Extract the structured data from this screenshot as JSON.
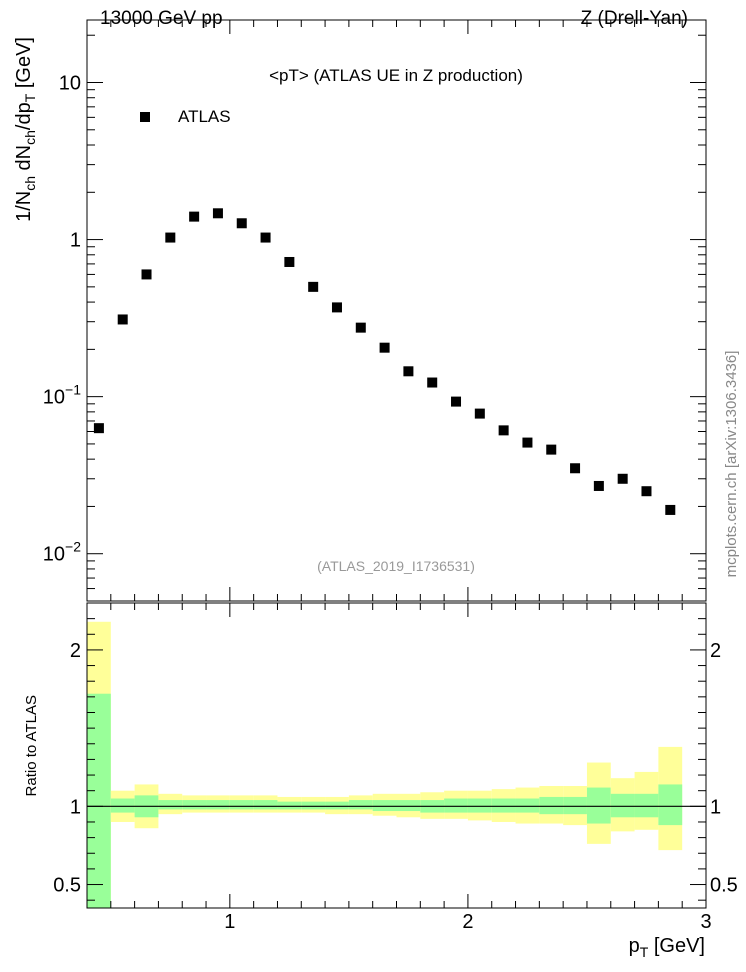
{
  "header": {
    "left": "13000 GeV pp",
    "right": "Z (Drell-Yan)"
  },
  "side_label": "mcplots.cern.ch [arXiv:1306.3436]",
  "chart_data": [
    {
      "type": "scatter",
      "title": "<pT> (ATLAS UE in Z production)",
      "subtitle": "(ATLAS_2019_I1736531)",
      "ylabel": "1/N_ch dN_ch/dp_T [GeV]",
      "yscale": "log",
      "xlim": [
        0.4,
        3.0
      ],
      "ylim": [
        0.005,
        25
      ],
      "legend": {
        "position": "top-left",
        "entries": [
          "ATLAS"
        ]
      },
      "series": [
        {
          "name": "ATLAS",
          "marker": "square",
          "color": "#000000",
          "x": [
            0.45,
            0.55,
            0.65,
            0.75,
            0.85,
            0.95,
            1.05,
            1.15,
            1.25,
            1.35,
            1.45,
            1.55,
            1.65,
            1.75,
            1.85,
            1.95,
            2.05,
            2.15,
            2.25,
            2.35,
            2.45,
            2.55,
            2.65,
            2.75,
            2.85
          ],
          "y": [
            0.063,
            0.31,
            0.6,
            1.03,
            1.4,
            1.47,
            1.27,
            1.03,
            0.72,
            0.5,
            0.37,
            0.275,
            0.205,
            0.145,
            0.123,
            0.093,
            0.078,
            0.061,
            0.051,
            0.046,
            0.035,
            0.027,
            0.03,
            0.025,
            0.019
          ]
        }
      ],
      "yticks": [
        {
          "value": 0.01,
          "base": "10",
          "exp": "−2"
        },
        {
          "value": 0.1,
          "base": "10",
          "exp": "−1"
        },
        {
          "value": 1,
          "label": "1"
        },
        {
          "value": 10,
          "label": "10"
        }
      ]
    },
    {
      "type": "area",
      "ylabel": "Ratio to ATLAS",
      "xlabel": "p_T [GeV]",
      "xlim": [
        0.4,
        3.0
      ],
      "ylim": [
        0.35,
        2.3
      ],
      "reference_line": 1.0,
      "xticks": [
        1,
        2,
        3
      ],
      "yticks": [
        0.5,
        1,
        2
      ],
      "bands": {
        "colors": {
          "outer": "#ffff99",
          "inner": "#99ff99"
        },
        "bin_edges": [
          0.4,
          0.5,
          0.6,
          0.7,
          0.8,
          0.9,
          1.0,
          1.1,
          1.2,
          1.3,
          1.4,
          1.5,
          1.6,
          1.7,
          1.8,
          1.9,
          2.0,
          2.1,
          2.2,
          2.3,
          2.4,
          2.5,
          2.6,
          2.7,
          2.8,
          2.9
        ],
        "outer_low": [
          0.35,
          0.9,
          0.86,
          0.95,
          0.96,
          0.96,
          0.96,
          0.96,
          0.96,
          0.96,
          0.95,
          0.95,
          0.94,
          0.93,
          0.92,
          0.92,
          0.91,
          0.9,
          0.89,
          0.89,
          0.88,
          0.76,
          0.84,
          0.85,
          0.72
        ],
        "outer_high": [
          2.18,
          1.1,
          1.14,
          1.08,
          1.07,
          1.07,
          1.07,
          1.07,
          1.06,
          1.06,
          1.06,
          1.07,
          1.08,
          1.08,
          1.09,
          1.1,
          1.1,
          1.11,
          1.12,
          1.13,
          1.13,
          1.28,
          1.18,
          1.22,
          1.38
        ],
        "inner_low": [
          0.35,
          0.96,
          0.93,
          0.98,
          0.98,
          0.98,
          0.98,
          0.98,
          0.98,
          0.98,
          0.98,
          0.98,
          0.97,
          0.97,
          0.96,
          0.96,
          0.96,
          0.96,
          0.96,
          0.95,
          0.95,
          0.89,
          0.93,
          0.93,
          0.88
        ],
        "inner_high": [
          1.72,
          1.05,
          1.07,
          1.04,
          1.04,
          1.04,
          1.04,
          1.04,
          1.03,
          1.03,
          1.03,
          1.04,
          1.04,
          1.04,
          1.04,
          1.05,
          1.05,
          1.05,
          1.05,
          1.06,
          1.06,
          1.12,
          1.08,
          1.08,
          1.14
        ]
      }
    }
  ]
}
